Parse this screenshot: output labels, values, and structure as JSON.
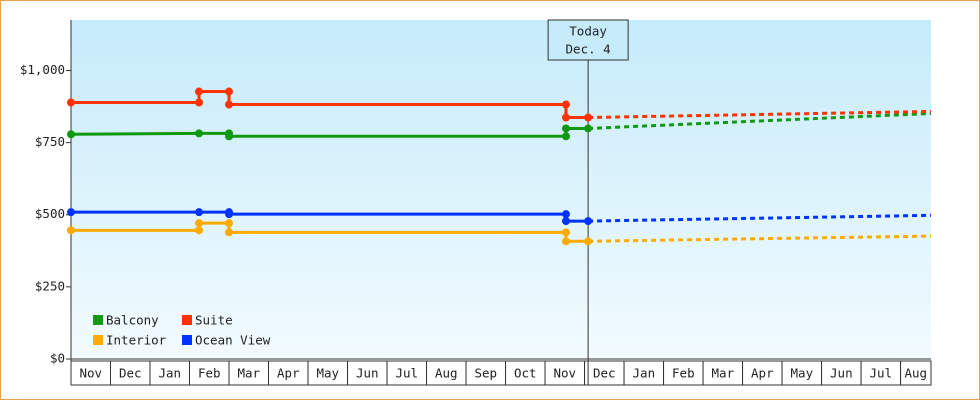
{
  "chart_data": {
    "type": "line",
    "xlim": [
      0,
      21.77
    ],
    "ylim": [
      0,
      1175
    ],
    "yticks": [
      {
        "value": 0,
        "label": "$0"
      },
      {
        "value": 250,
        "label": "$250"
      },
      {
        "value": 500,
        "label": "$500"
      },
      {
        "value": 750,
        "label": "$750"
      },
      {
        "value": 1000,
        "label": "$1,000"
      }
    ],
    "xticks": [
      {
        "value": 0.5,
        "label": "Nov"
      },
      {
        "value": 1.5,
        "label": "Dec"
      },
      {
        "value": 2.5,
        "label": "Jan"
      },
      {
        "value": 3.5,
        "label": "Feb"
      },
      {
        "value": 4.5,
        "label": "Mar"
      },
      {
        "value": 5.5,
        "label": "Apr"
      },
      {
        "value": 6.5,
        "label": "May"
      },
      {
        "value": 7.5,
        "label": "Jun"
      },
      {
        "value": 8.5,
        "label": "Jul"
      },
      {
        "value": 9.5,
        "label": "Aug"
      },
      {
        "value": 10.5,
        "label": "Sep"
      },
      {
        "value": 11.5,
        "label": "Oct"
      },
      {
        "value": 12.5,
        "label": "Nov"
      },
      {
        "value": 13.5,
        "label": "Dec"
      },
      {
        "value": 14.5,
        "label": "Jan"
      },
      {
        "value": 15.5,
        "label": "Feb"
      },
      {
        "value": 16.5,
        "label": "Mar"
      },
      {
        "value": 17.5,
        "label": "Apr"
      },
      {
        "value": 18.5,
        "label": "May"
      },
      {
        "value": 19.5,
        "label": "Jun"
      },
      {
        "value": 20.5,
        "label": "Jul"
      },
      {
        "value": 21.4,
        "label": "Aug"
      }
    ],
    "annotation": {
      "lines": [
        "Today",
        "Dec. 4"
      ],
      "x": 13.09
    },
    "series": [
      {
        "name": "Balcony",
        "color": "#119911",
        "x": [
          0,
          3.24,
          4.0,
          4.0,
          12.53,
          12.53,
          13.09
        ],
        "values": [
          779,
          782,
          782,
          772,
          772,
          799,
          799
        ],
        "forecast": {
          "x": [
            13.09,
            21.77
          ],
          "values": [
            799,
            851
          ]
        }
      },
      {
        "name": "Suite",
        "color": "#ff3300",
        "x": [
          0,
          3.24,
          3.24,
          4.0,
          4.0,
          12.53,
          12.53,
          13.09
        ],
        "values": [
          889,
          889,
          927,
          927,
          882,
          882,
          837,
          837
        ],
        "forecast": {
          "x": [
            13.09,
            21.77
          ],
          "values": [
            837,
            858
          ]
        }
      },
      {
        "name": "Interior",
        "color": "#ffaa00",
        "x": [
          0,
          3.24,
          3.24,
          4.0,
          4.0,
          12.53,
          12.53,
          13.09
        ],
        "values": [
          446,
          446,
          471,
          471,
          439,
          439,
          408,
          408
        ],
        "forecast": {
          "x": [
            13.09,
            21.77
          ],
          "values": [
            408,
            426
          ]
        }
      },
      {
        "name": "Ocean View",
        "color": "#0033ff",
        "x": [
          0,
          3.24,
          4.0,
          4.0,
          12.53,
          12.53,
          13.09
        ],
        "values": [
          509,
          509,
          509,
          502,
          502,
          478,
          478
        ],
        "forecast": {
          "x": [
            13.09,
            21.77
          ],
          "values": [
            478,
            498
          ]
        }
      }
    ]
  }
}
